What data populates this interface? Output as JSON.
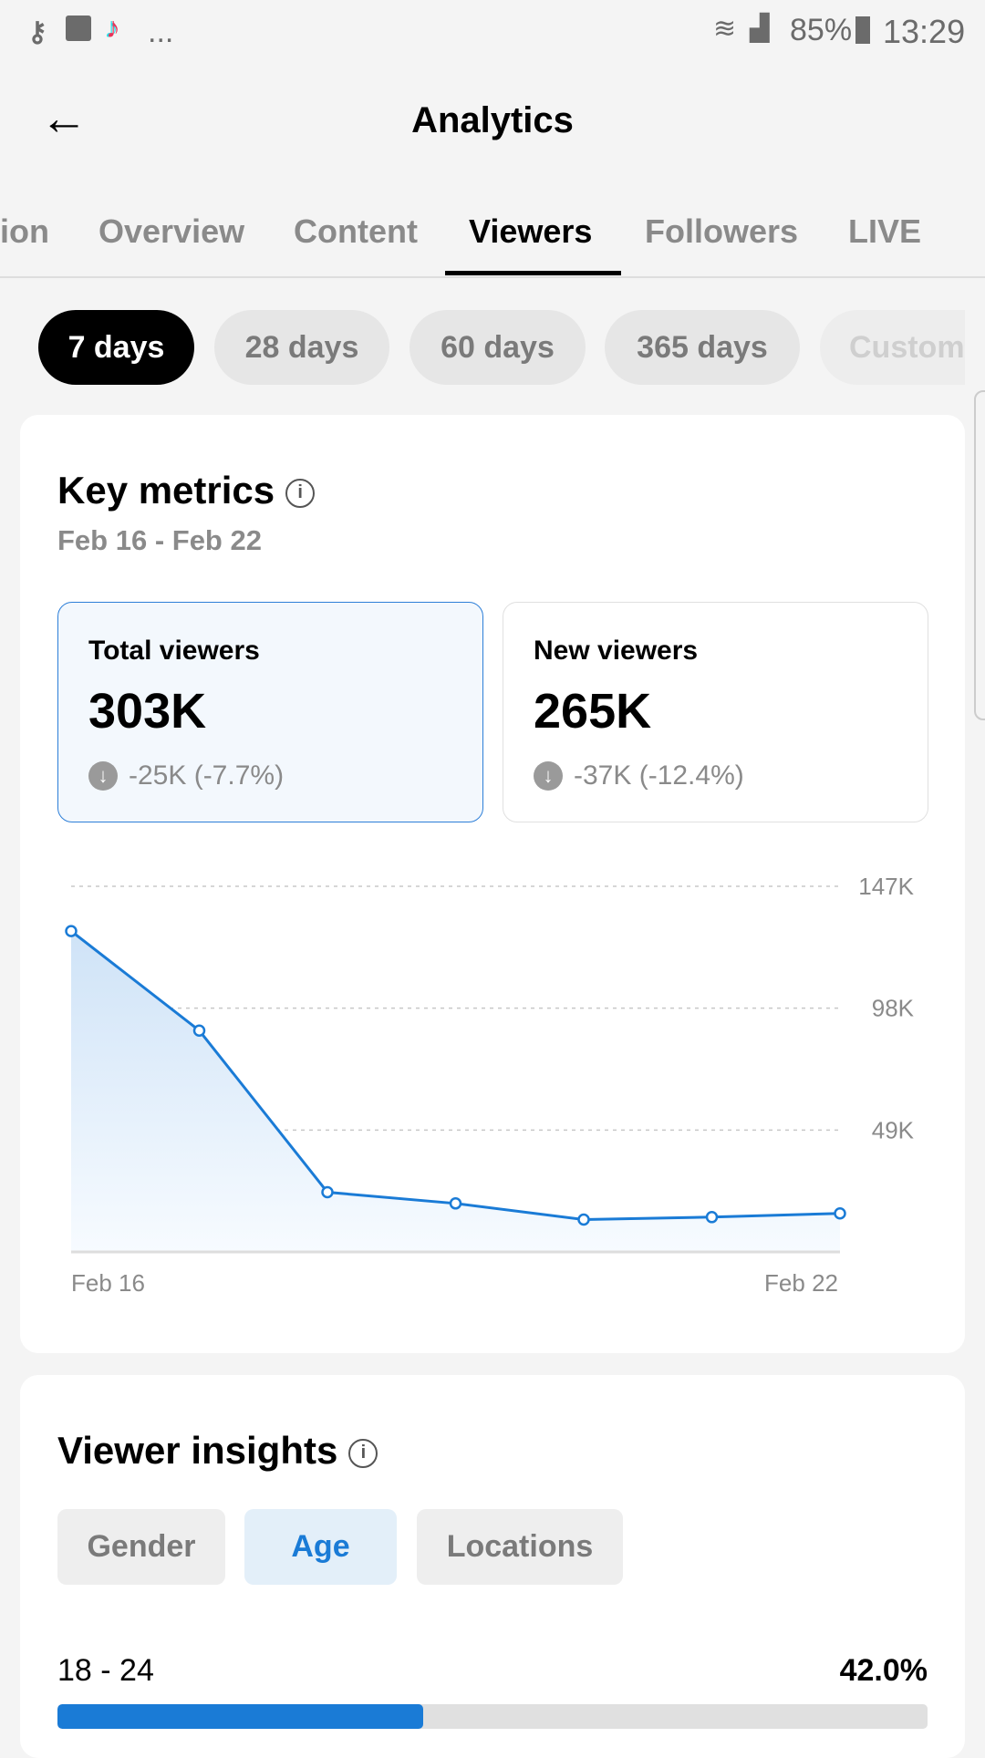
{
  "status_bar": {
    "icons_left": [
      "key-icon",
      "image-icon",
      "tiktok-icon"
    ],
    "more": "...",
    "battery": "85%",
    "time": "13:29"
  },
  "header": {
    "title": "Analytics"
  },
  "tabs": [
    {
      "label": "ion"
    },
    {
      "label": "Overview"
    },
    {
      "label": "Content"
    },
    {
      "label": "Viewers",
      "active": true
    },
    {
      "label": "Followers"
    },
    {
      "label": "LIVE"
    }
  ],
  "ranges": [
    {
      "label": "7 days",
      "active": true
    },
    {
      "label": "28 days"
    },
    {
      "label": "60 days"
    },
    {
      "label": "365 days"
    },
    {
      "label": "Custom"
    }
  ],
  "key_metrics": {
    "title": "Key metrics",
    "date_range": "Feb 16 - Feb 22",
    "cards": [
      {
        "label": "Total viewers",
        "value": "303K",
        "delta": "-25K (-7.7%)",
        "selected": true
      },
      {
        "label": "New viewers",
        "value": "265K",
        "delta": "-37K (-12.4%)"
      }
    ]
  },
  "chart_data": {
    "type": "area",
    "series": [
      {
        "name": "Total viewers",
        "values": [
          129000,
          89000,
          24000,
          19500,
          13000,
          14000,
          15500
        ]
      }
    ],
    "x": [
      "Feb 16",
      "Feb 17",
      "Feb 18",
      "Feb 19",
      "Feb 20",
      "Feb 21",
      "Feb 22"
    ],
    "x_tick_labels": [
      "Feb 16",
      "Feb 22"
    ],
    "y_tick_labels": [
      "147K",
      "98K",
      "49K"
    ],
    "y_ticks": [
      147000,
      98000,
      49000
    ],
    "ylim": [
      0,
      147000
    ],
    "grid": true,
    "color": "#1a7bd6"
  },
  "viewer_insights": {
    "title": "Viewer insights",
    "tabs": [
      {
        "label": "Gender"
      },
      {
        "label": "Age",
        "active": true
      },
      {
        "label": "Locations"
      }
    ],
    "rows": [
      {
        "label": "18 - 24",
        "value": "42.0%",
        "fraction": 0.42
      }
    ]
  }
}
